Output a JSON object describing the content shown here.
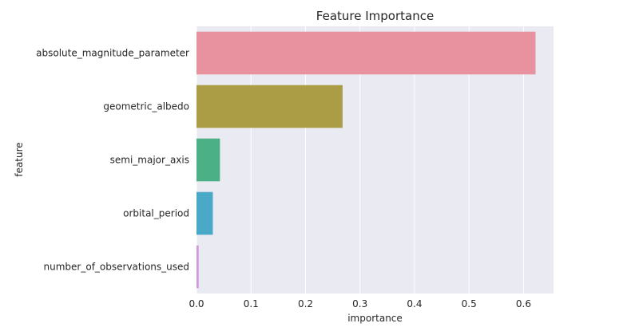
{
  "chart_data": {
    "type": "bar",
    "orientation": "horizontal",
    "title": "Feature Importance",
    "xlabel": "importance",
    "ylabel": "feature",
    "categories": [
      "absolute_magnitude_parameter",
      "geometric_albedo",
      "semi_major_axis",
      "orbital_period",
      "number_of_observations_used"
    ],
    "values": [
      0.622,
      0.268,
      0.043,
      0.03,
      0.004
    ],
    "xlim": [
      0,
      0.655
    ],
    "xticks": [
      0.0,
      0.1,
      0.2,
      0.3,
      0.4,
      0.5,
      0.6
    ],
    "xtick_labels": [
      "0.0",
      "0.1",
      "0.2",
      "0.3",
      "0.4",
      "0.5",
      "0.6"
    ],
    "grid": true,
    "colors": [
      "#e8919f",
      "#ab9c46",
      "#4bb086",
      "#4aa9c6",
      "#d199db"
    ],
    "background": "#eaeaf2"
  }
}
